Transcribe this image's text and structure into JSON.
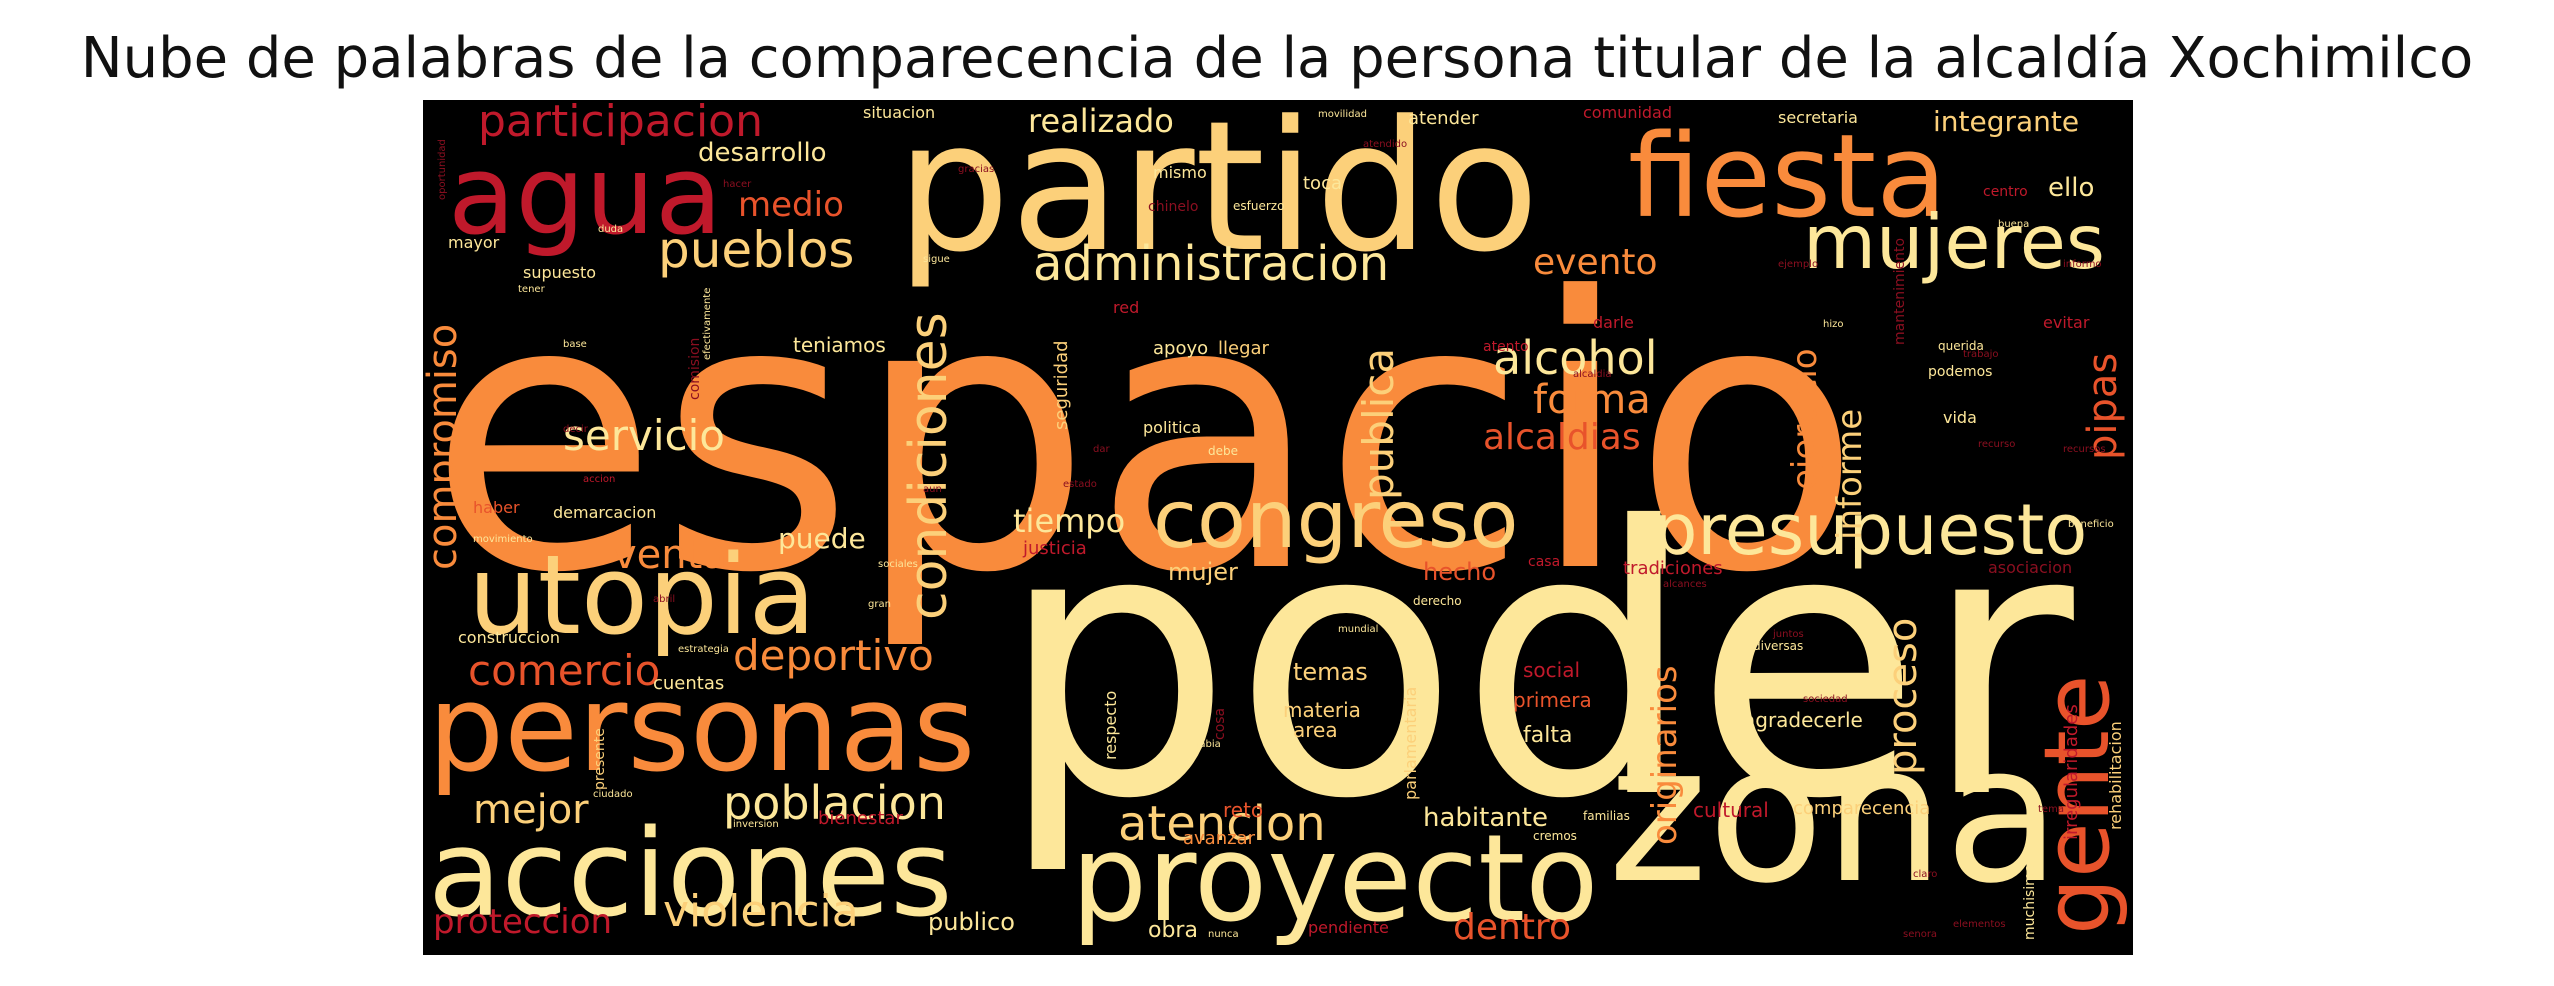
{
  "title": "Nube de palabras de la comparecencia de la persona titular de la alcaldía Xochimilco",
  "palette": {
    "pale": "#fde79a",
    "light": "#fcd07a",
    "orange": "#f98b3c",
    "redorange": "#e8532b",
    "red": "#c0192b",
    "darkred": "#8b0f20"
  },
  "words": {
    "espacio": "espacio",
    "poder": "poder",
    "partido": "partido",
    "zona": "zona",
    "fiesta": "fiesta",
    "proyecto": "proyecto",
    "personas": "personas",
    "acciones": "acciones",
    "agua": "agua",
    "utopia": "utopia",
    "congreso": "congreso",
    "presupuesto": "presupuesto",
    "mujeres": "mujeres",
    "gente": "gente",
    "administracion": "administracion",
    "pueblos": "pueblos",
    "condiciones": "condiciones",
    "atencion": "atencion",
    "poblacion": "poblacion",
    "violencia": "violencia",
    "participacion": "participacion",
    "servicio": "servicio",
    "alcohol": "alcohol",
    "forma": "forma",
    "alcaldias": "alcaldias",
    "compromiso": "compromiso",
    "publica": "publica",
    "deportivo": "deportivo",
    "comercio": "comercio",
    "venta": "venta",
    "mejor": "mejor",
    "proteccion": "proteccion",
    "dentro": "dentro",
    "evento": "evento",
    "pipas": "pipas",
    "ejercicio": "ejercicio",
    "informe": "informe",
    "proceso": "proceso",
    "originarios": "originarios",
    "realizado": "realizado",
    "desarrollo": "desarrollo",
    "medio": "medio",
    "integrante": "integrante",
    "ello": "ello",
    "tiempo": "tiempo",
    "puede": "puede",
    "mujer": "mujer",
    "hecho": "hecho",
    "temas": "temas",
    "habitante": "habitante",
    "publico": "publico",
    "obra": "obra",
    "cultural": "cultural",
    "comparecencia": "comparecencia",
    "agradecerle": "agradecerle",
    "falta": "falta",
    "social": "social",
    "primera": "primera",
    "materia": "materia",
    "area": "area",
    "reto": "reto",
    "avanzar": "avanzar",
    "teniamos": "teniamos",
    "apoyo": "apoyo",
    "llegar": "llegar",
    "seguridad": "seguridad",
    "politica": "politica",
    "toca": "toca",
    "debe": "debe",
    "darle": "darle",
    "podemos": "podemos",
    "vida": "vida",
    "querida": "querida",
    "evitar": "evitar",
    "mismo": "mismo",
    "atender": "atender",
    "situacion": "situacion",
    "comunidad": "comunidad",
    "secretaria": "secretaria",
    "centro": "centro",
    "mayor": "mayor",
    "supuesto": "supuesto",
    "red": "red",
    "haber": "haber",
    "demarcacion": "demarcacion",
    "construccion": "construccion",
    "cuentas": "cuentas",
    "justicia": "justicia",
    "tradiciones": "tradiciones",
    "asociacion": "asociacion",
    "respecto": "respecto",
    "parlamentaria": "parlamentaria",
    "bienestar": "bienestar",
    "pendiente": "pendiente",
    "rehabilitacion": "rehabilitacion",
    "irregularidades": "irregularidades",
    "muchisimas": "muchisimas",
    "diversas": "diversas",
    "mantenimiento": "mantenimiento",
    "comision": "comision",
    "chinelo": "chinelo",
    "esfuerzo": "esfuerzo",
    "beneficio": "beneficio",
    "casa": "casa",
    "mundial": "mundial",
    "derecho": "derecho",
    "familias": "familias",
    "presente": "presente",
    "ciudado": "ciudado",
    "cosa": "cosa",
    "atento": "atento",
    "cremos": "cremos",
    "movimiento": "movimiento",
    "alcances": "alcances",
    "estrategia": "estrategia",
    "sociales": "sociales",
    "habia": "habia",
    "aun": "aun",
    "tener": "tener",
    "sigue": "sigue",
    "accion": "accion",
    "abril": "abril",
    "gracias": "gracias",
    "base": "base",
    "hizo": "hizo",
    "informo": "informo",
    "duda": "duda",
    "dar": "dar",
    "inversion": "inversion",
    "oportunidad": "oportunidad",
    "nunca": "nunca",
    "claro": "claro",
    "elementos": "elementos",
    "buena": "buena",
    "ejemplo": "ejemplo",
    "efectivamente": "efectivamente",
    "decir": "decir",
    "estado": "estado",
    "gran": "gran",
    "movilidad": "movilidad",
    "atendido": "atendido",
    "tema": "tema",
    "juntos": "juntos",
    "trabajo": "trabajo",
    "hacer": "hacer",
    "alcaldia": "alcaldia",
    "recurso": "recurso",
    "recursos": "recursos",
    "sociedad": "sociedad",
    "senora": "senora"
  }
}
